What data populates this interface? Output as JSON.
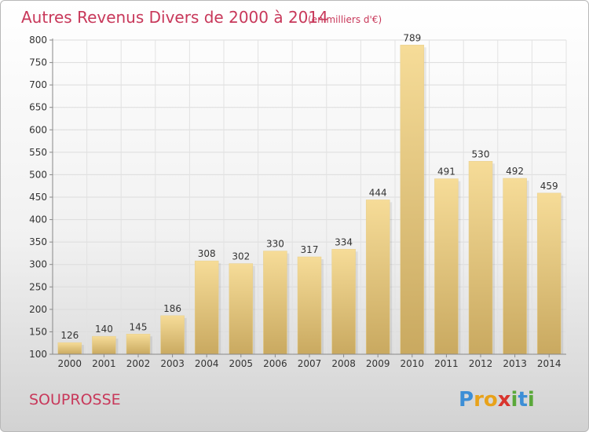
{
  "chart_data": {
    "type": "bar",
    "title": "Autres Revenus Divers de 2000 à 2014",
    "subtitle": "(en milliers d'€)",
    "categories": [
      "2000",
      "2001",
      "2002",
      "2003",
      "2004",
      "2005",
      "2006",
      "2007",
      "2008",
      "2009",
      "2010",
      "2011",
      "2012",
      "2013",
      "2014"
    ],
    "values": [
      126,
      140,
      145,
      186,
      308,
      302,
      330,
      317,
      334,
      444,
      789,
      491,
      530,
      492,
      459
    ],
    "ylim": [
      100,
      800
    ],
    "yticks": [
      100,
      150,
      200,
      250,
      300,
      350,
      400,
      450,
      500,
      550,
      600,
      650,
      700,
      750,
      800
    ],
    "grid": true,
    "bar_color": "#e8c97a",
    "xlabel": "",
    "ylabel": ""
  },
  "commune": "SOUPROSSE",
  "logo": {
    "letters": [
      "P",
      "r",
      "o",
      "x",
      "i",
      "t",
      "i"
    ],
    "colors": [
      "#3c8ed6",
      "#e8a21a",
      "#e8a21a",
      "#d9352e",
      "#5aa83a",
      "#3c8ed6",
      "#5aa83a"
    ]
  }
}
